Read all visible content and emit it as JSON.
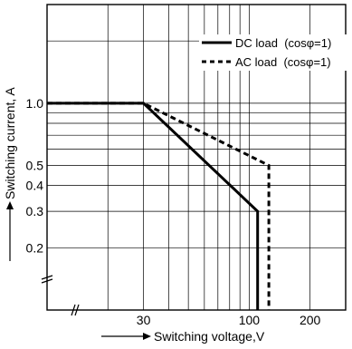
{
  "chart_data": {
    "type": "line",
    "xlabel": "Switching voltage,V",
    "ylabel": "Switching current, A",
    "x_scale": "log",
    "y_scale": "log",
    "xlim": [
      10,
      300
    ],
    "ylim": [
      0.1,
      3
    ],
    "x_ticks": [
      {
        "value": 30,
        "label": "30"
      },
      {
        "value": 100,
        "label": "100"
      },
      {
        "value": 200,
        "label": "200"
      }
    ],
    "y_ticks": [
      {
        "value": 1.0,
        "label": "1.0"
      },
      {
        "value": 0.5,
        "label": "0.5"
      },
      {
        "value": 0.4,
        "label": "0.4"
      },
      {
        "value": 0.3,
        "label": "0.3"
      },
      {
        "value": 0.2,
        "label": "0.2"
      }
    ],
    "axis_break_marks": true,
    "grid": true,
    "legend_position": "top-right",
    "series": [
      {
        "name": "DC load  (cosφ=1)",
        "style": "solid",
        "color": "#000000",
        "points": [
          [
            10,
            1.0
          ],
          [
            30,
            1.0
          ],
          [
            110,
            0.3
          ],
          [
            110,
            0.1
          ]
        ]
      },
      {
        "name": "AC load  (cosφ=1)",
        "style": "dashed",
        "color": "#000000",
        "points": [
          [
            10,
            1.0
          ],
          [
            30,
            1.0
          ],
          [
            125,
            0.5
          ],
          [
            125,
            0.1
          ]
        ]
      }
    ]
  }
}
